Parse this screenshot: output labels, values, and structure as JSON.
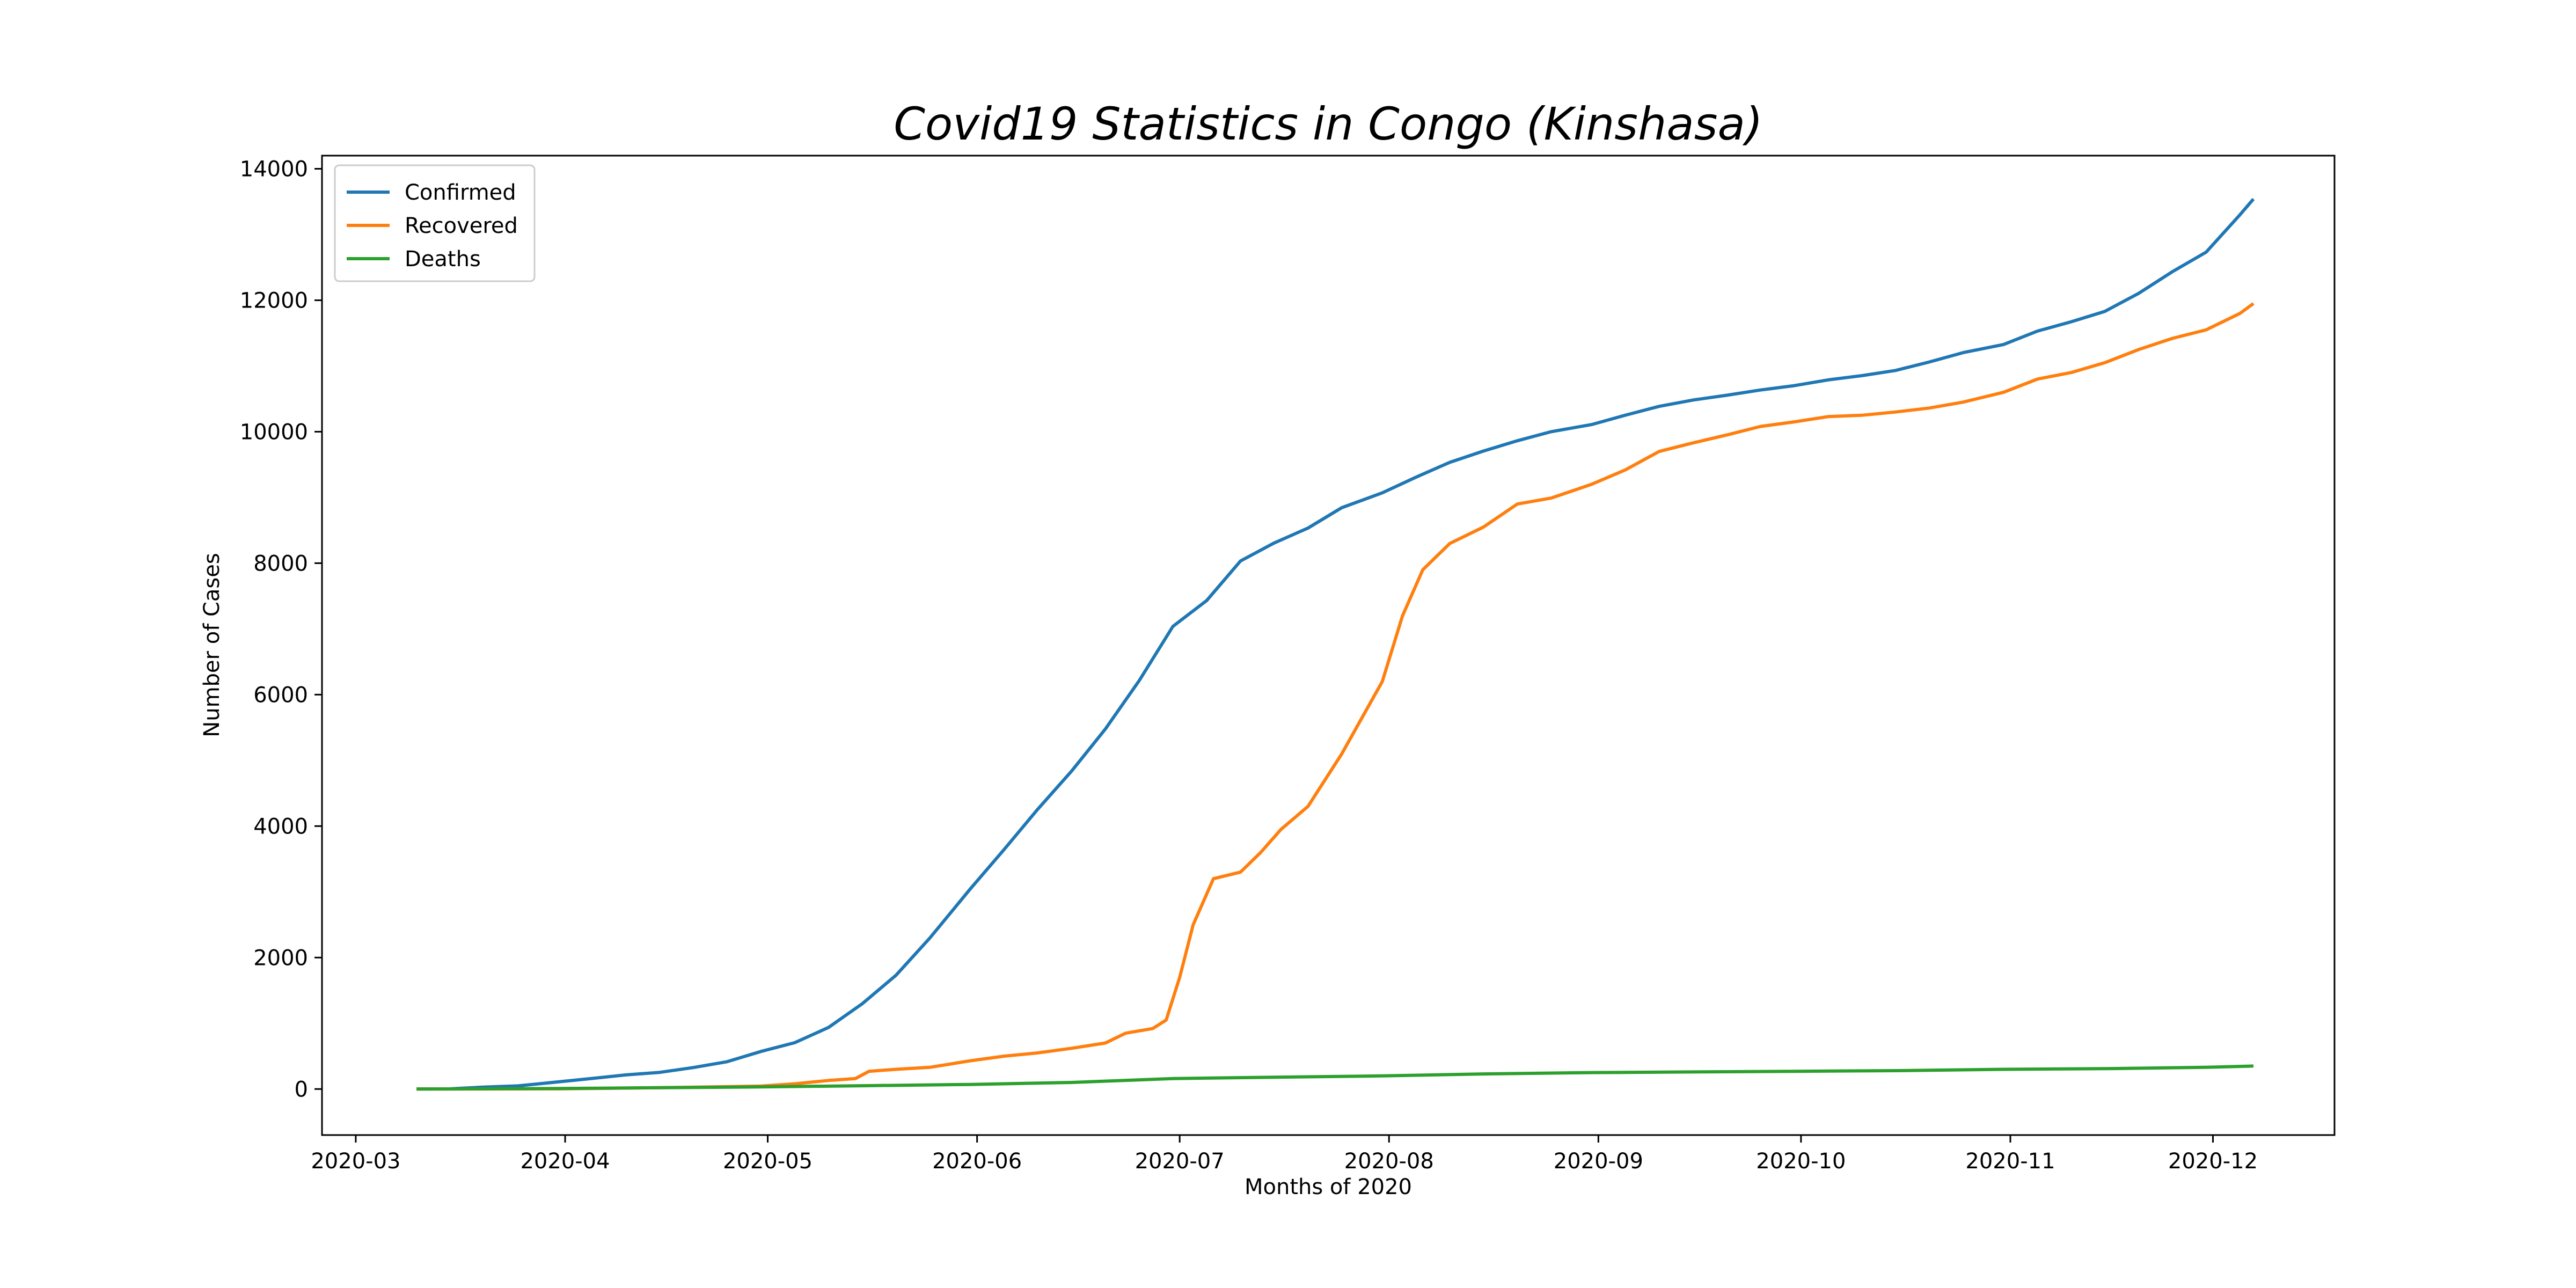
{
  "chart_data": {
    "type": "line",
    "title": "Covid19 Statistics in Congo (Kinshasa)",
    "xlabel": "Months of 2020",
    "ylabel": "Number of Cases",
    "x_ticks": [
      "2020-03",
      "2020-04",
      "2020-05",
      "2020-06",
      "2020-07",
      "2020-08",
      "2020-09",
      "2020-10",
      "2020-11",
      "2020-12"
    ],
    "x_range": [
      "2020-02-25",
      "2020-12-19"
    ],
    "ylim": [
      -700,
      14200
    ],
    "y_ticks": [
      0,
      2000,
      4000,
      6000,
      8000,
      10000,
      12000,
      14000
    ],
    "grid": false,
    "legend": "top-left",
    "series": [
      {
        "name": "Confirmed",
        "color": "#1f77b4",
        "points": [
          [
            "2020-03-10",
            1
          ],
          [
            "2020-03-15",
            3
          ],
          [
            "2020-03-20",
            30
          ],
          [
            "2020-03-25",
            48
          ],
          [
            "2020-03-31",
            109
          ],
          [
            "2020-04-05",
            161
          ],
          [
            "2020-04-10",
            215
          ],
          [
            "2020-04-15",
            254
          ],
          [
            "2020-04-20",
            327
          ],
          [
            "2020-04-25",
            416
          ],
          [
            "2020-04-30",
            572
          ],
          [
            "2020-05-05",
            705
          ],
          [
            "2020-05-10",
            937
          ],
          [
            "2020-05-15",
            1298
          ],
          [
            "2020-05-20",
            1731
          ],
          [
            "2020-05-25",
            2297
          ],
          [
            "2020-05-31",
            3046
          ],
          [
            "2020-06-05",
            3644
          ],
          [
            "2020-06-10",
            4259
          ],
          [
            "2020-06-15",
            4837
          ],
          [
            "2020-06-20",
            5477
          ],
          [
            "2020-06-25",
            6213
          ],
          [
            "2020-06-30",
            7039
          ],
          [
            "2020-07-05",
            7432
          ],
          [
            "2020-07-10",
            8033
          ],
          [
            "2020-07-15",
            8308
          ],
          [
            "2020-07-20",
            8534
          ],
          [
            "2020-07-25",
            8844
          ],
          [
            "2020-07-31",
            9070
          ],
          [
            "2020-08-05",
            9309
          ],
          [
            "2020-08-10",
            9534
          ],
          [
            "2020-08-15",
            9706
          ],
          [
            "2020-08-20",
            9862
          ],
          [
            "2020-08-25",
            10000
          ],
          [
            "2020-08-31",
            10109
          ],
          [
            "2020-09-05",
            10252
          ],
          [
            "2020-09-10",
            10386
          ],
          [
            "2020-09-15",
            10482
          ],
          [
            "2020-09-20",
            10555
          ],
          [
            "2020-09-25",
            10635
          ],
          [
            "2020-09-30",
            10701
          ],
          [
            "2020-10-05",
            10788
          ],
          [
            "2020-10-10",
            10853
          ],
          [
            "2020-10-15",
            10932
          ],
          [
            "2020-10-20",
            11061
          ],
          [
            "2020-10-25",
            11203
          ],
          [
            "2020-10-31",
            11327
          ],
          [
            "2020-11-05",
            11530
          ],
          [
            "2020-11-10",
            11672
          ],
          [
            "2020-11-15",
            11831
          ],
          [
            "2020-11-20",
            12105
          ],
          [
            "2020-11-25",
            12435
          ],
          [
            "2020-11-30",
            12732
          ],
          [
            "2020-12-05",
            13300
          ],
          [
            "2020-12-07",
            13540
          ]
        ]
      },
      {
        "name": "Recovered",
        "color": "#ff7f0e",
        "points": [
          [
            "2020-03-10",
            0
          ],
          [
            "2020-03-31",
            3
          ],
          [
            "2020-04-15",
            20
          ],
          [
            "2020-04-30",
            45
          ],
          [
            "2020-05-05",
            80
          ],
          [
            "2020-05-10",
            130
          ],
          [
            "2020-05-14",
            160
          ],
          [
            "2020-05-16",
            270
          ],
          [
            "2020-05-20",
            300
          ],
          [
            "2020-05-25",
            330
          ],
          [
            "2020-05-31",
            430
          ],
          [
            "2020-06-05",
            500
          ],
          [
            "2020-06-10",
            550
          ],
          [
            "2020-06-15",
            620
          ],
          [
            "2020-06-20",
            700
          ],
          [
            "2020-06-23",
            850
          ],
          [
            "2020-06-27",
            920
          ],
          [
            "2020-06-29",
            1050
          ],
          [
            "2020-07-01",
            1700
          ],
          [
            "2020-07-03",
            2500
          ],
          [
            "2020-07-06",
            3200
          ],
          [
            "2020-07-10",
            3300
          ],
          [
            "2020-07-13",
            3600
          ],
          [
            "2020-07-16",
            3950
          ],
          [
            "2020-07-20",
            4300
          ],
          [
            "2020-07-25",
            5100
          ],
          [
            "2020-07-31",
            6200
          ],
          [
            "2020-08-03",
            7200
          ],
          [
            "2020-08-06",
            7900
          ],
          [
            "2020-08-10",
            8300
          ],
          [
            "2020-08-15",
            8550
          ],
          [
            "2020-08-20",
            8900
          ],
          [
            "2020-08-25",
            8990
          ],
          [
            "2020-08-31",
            9200
          ],
          [
            "2020-09-05",
            9420
          ],
          [
            "2020-09-10",
            9700
          ],
          [
            "2020-09-15",
            9830
          ],
          [
            "2020-09-20",
            9950
          ],
          [
            "2020-09-25",
            10080
          ],
          [
            "2020-09-30",
            10150
          ],
          [
            "2020-10-05",
            10230
          ],
          [
            "2020-10-10",
            10250
          ],
          [
            "2020-10-15",
            10300
          ],
          [
            "2020-10-20",
            10360
          ],
          [
            "2020-10-25",
            10450
          ],
          [
            "2020-10-31",
            10600
          ],
          [
            "2020-11-05",
            10800
          ],
          [
            "2020-11-10",
            10900
          ],
          [
            "2020-11-15",
            11050
          ],
          [
            "2020-11-20",
            11250
          ],
          [
            "2020-11-25",
            11420
          ],
          [
            "2020-11-30",
            11550
          ],
          [
            "2020-12-05",
            11800
          ],
          [
            "2020-12-07",
            11950
          ]
        ]
      },
      {
        "name": "Deaths",
        "color": "#2ca02c",
        "points": [
          [
            "2020-03-10",
            0
          ],
          [
            "2020-03-31",
            8
          ],
          [
            "2020-04-15",
            20
          ],
          [
            "2020-04-30",
            32
          ],
          [
            "2020-05-15",
            50
          ],
          [
            "2020-05-31",
            70
          ],
          [
            "2020-06-15",
            100
          ],
          [
            "2020-06-30",
            160
          ],
          [
            "2020-07-15",
            180
          ],
          [
            "2020-07-31",
            200
          ],
          [
            "2020-08-15",
            230
          ],
          [
            "2020-08-31",
            250
          ],
          [
            "2020-09-15",
            260
          ],
          [
            "2020-09-30",
            270
          ],
          [
            "2020-10-15",
            280
          ],
          [
            "2020-10-31",
            300
          ],
          [
            "2020-11-15",
            310
          ],
          [
            "2020-11-30",
            330
          ],
          [
            "2020-12-07",
            350
          ]
        ]
      }
    ]
  }
}
